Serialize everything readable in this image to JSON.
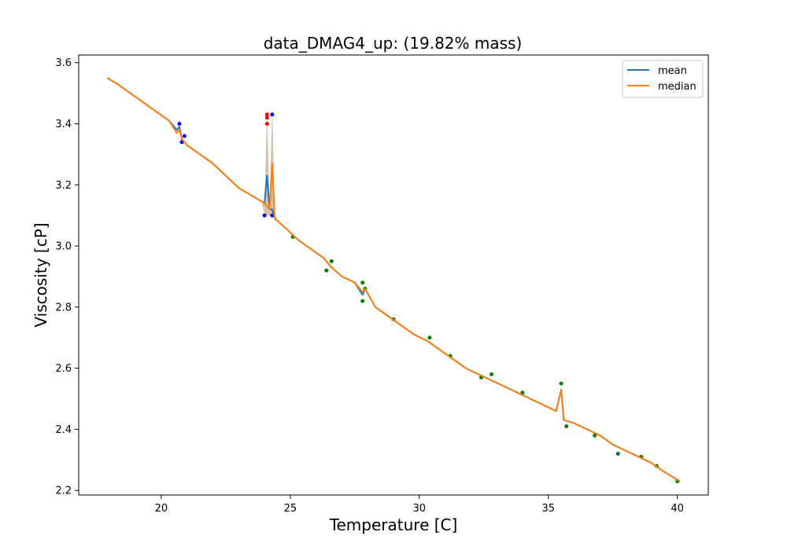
{
  "chart_data": {
    "type": "line",
    "title": "data_DMAG4_up: (19.82% mass)",
    "xlabel": "Temperature [C]",
    "ylabel": "Viscosity [cP]",
    "xlim": [
      16.8,
      41.2
    ],
    "ylim": [
      2.185,
      3.625
    ],
    "xticks": [
      20,
      25,
      30,
      35,
      40
    ],
    "yticks": [
      2.2,
      2.4,
      2.6,
      2.8,
      3.0,
      3.2,
      3.4,
      3.6
    ],
    "xtick_labels": [
      "20",
      "25",
      "30",
      "35",
      "40"
    ],
    "ytick_labels": [
      "2.2",
      "2.4",
      "2.6",
      "2.8",
      "3.0",
      "3.2",
      "3.4",
      "3.6"
    ],
    "grid": false,
    "legend_position": "top-right",
    "colors": {
      "mean": "#1f77b4",
      "median": "#ff7f0e",
      "band": "#c8ad97",
      "points_green": "#008000",
      "points_blue": "#0000ff",
      "points_red": "#ff0000"
    },
    "series": [
      {
        "name": "mean",
        "x": [
          17.9,
          18.3,
          18.8,
          19.3,
          19.8,
          20.3,
          20.6,
          20.7,
          20.8,
          21.0,
          21.5,
          22.0,
          22.5,
          23.0,
          23.6,
          24.0,
          24.1,
          24.2,
          24.3,
          24.4,
          24.8,
          25.3,
          25.8,
          26.3,
          26.6,
          27.0,
          27.5,
          27.8,
          27.9,
          28.3,
          28.8,
          29.3,
          29.8,
          30.3,
          30.8,
          31.3,
          31.8,
          32.3,
          32.8,
          33.3,
          33.8,
          34.3,
          34.8,
          35.3,
          35.5,
          35.6,
          36.0,
          36.5,
          37.0,
          37.5,
          38.0,
          38.5,
          39.0,
          39.5,
          40.1
        ],
        "values": [
          3.55,
          3.53,
          3.5,
          3.47,
          3.44,
          3.41,
          3.38,
          3.39,
          3.35,
          3.33,
          3.3,
          3.27,
          3.23,
          3.19,
          3.16,
          3.14,
          3.23,
          3.12,
          3.12,
          3.09,
          3.06,
          3.02,
          2.99,
          2.96,
          2.93,
          2.9,
          2.88,
          2.84,
          2.86,
          2.8,
          2.77,
          2.74,
          2.71,
          2.69,
          2.66,
          2.63,
          2.6,
          2.58,
          2.56,
          2.54,
          2.52,
          2.5,
          2.48,
          2.46,
          2.53,
          2.43,
          2.42,
          2.4,
          2.38,
          2.35,
          2.33,
          2.31,
          2.29,
          2.26,
          2.23
        ]
      },
      {
        "name": "median",
        "x": [
          17.9,
          18.3,
          18.8,
          19.3,
          19.8,
          20.3,
          20.6,
          20.7,
          20.8,
          21.0,
          21.5,
          22.0,
          22.5,
          23.0,
          23.6,
          24.0,
          24.1,
          24.2,
          24.3,
          24.4,
          24.8,
          25.3,
          25.8,
          26.3,
          26.6,
          27.0,
          27.5,
          27.8,
          27.9,
          28.3,
          28.8,
          29.3,
          29.8,
          30.3,
          30.8,
          31.3,
          31.8,
          32.3,
          32.8,
          33.3,
          33.8,
          34.3,
          34.8,
          35.3,
          35.5,
          35.6,
          36.0,
          36.5,
          37.0,
          37.5,
          38.0,
          38.5,
          39.0,
          39.5,
          40.1
        ],
        "values": [
          3.55,
          3.53,
          3.5,
          3.47,
          3.44,
          3.41,
          3.37,
          3.38,
          3.35,
          3.33,
          3.3,
          3.27,
          3.23,
          3.19,
          3.16,
          3.14,
          3.13,
          3.12,
          3.27,
          3.09,
          3.06,
          3.02,
          2.99,
          2.96,
          2.93,
          2.9,
          2.88,
          2.85,
          2.86,
          2.8,
          2.77,
          2.74,
          2.71,
          2.69,
          2.66,
          2.63,
          2.6,
          2.58,
          2.56,
          2.54,
          2.52,
          2.5,
          2.48,
          2.46,
          2.53,
          2.43,
          2.42,
          2.4,
          2.38,
          2.35,
          2.33,
          2.31,
          2.29,
          2.26,
          2.23
        ]
      }
    ],
    "band": {
      "x": [
        23.9,
        24.0,
        24.1,
        24.2,
        24.3,
        24.4,
        24.5
      ],
      "upper": [
        3.14,
        3.14,
        3.45,
        3.14,
        3.46,
        3.1,
        3.09
      ],
      "lower": [
        3.14,
        3.1,
        3.1,
        3.1,
        3.1,
        3.09,
        3.09
      ]
    },
    "scatter": [
      {
        "x": 20.7,
        "y": 3.4,
        "color": "blue"
      },
      {
        "x": 20.8,
        "y": 3.34,
        "color": "blue"
      },
      {
        "x": 20.9,
        "y": 3.36,
        "color": "blue"
      },
      {
        "x": 24.0,
        "y": 3.1,
        "color": "blue"
      },
      {
        "x": 24.1,
        "y": 3.43,
        "color": "red"
      },
      {
        "x": 24.1,
        "y": 3.42,
        "color": "red"
      },
      {
        "x": 24.1,
        "y": 3.4,
        "color": "red"
      },
      {
        "x": 24.3,
        "y": 3.43,
        "color": "blue"
      },
      {
        "x": 24.3,
        "y": 3.1,
        "color": "blue"
      },
      {
        "x": 25.1,
        "y": 3.03,
        "color": "green"
      },
      {
        "x": 26.4,
        "y": 2.92,
        "color": "green"
      },
      {
        "x": 26.6,
        "y": 2.95,
        "color": "green"
      },
      {
        "x": 27.8,
        "y": 2.88,
        "color": "green"
      },
      {
        "x": 27.8,
        "y": 2.82,
        "color": "green"
      },
      {
        "x": 27.9,
        "y": 2.86,
        "color": "green"
      },
      {
        "x": 29.0,
        "y": 2.76,
        "color": "green"
      },
      {
        "x": 30.4,
        "y": 2.7,
        "color": "green"
      },
      {
        "x": 31.2,
        "y": 2.64,
        "color": "green"
      },
      {
        "x": 32.4,
        "y": 2.57,
        "color": "green"
      },
      {
        "x": 32.8,
        "y": 2.58,
        "color": "green"
      },
      {
        "x": 34.0,
        "y": 2.52,
        "color": "green"
      },
      {
        "x": 35.5,
        "y": 2.55,
        "color": "green"
      },
      {
        "x": 35.7,
        "y": 2.41,
        "color": "green"
      },
      {
        "x": 36.8,
        "y": 2.38,
        "color": "green"
      },
      {
        "x": 37.7,
        "y": 2.32,
        "color": "green"
      },
      {
        "x": 38.6,
        "y": 2.31,
        "color": "green"
      },
      {
        "x": 39.2,
        "y": 2.28,
        "color": "green"
      },
      {
        "x": 40.0,
        "y": 2.23,
        "color": "green"
      }
    ]
  }
}
